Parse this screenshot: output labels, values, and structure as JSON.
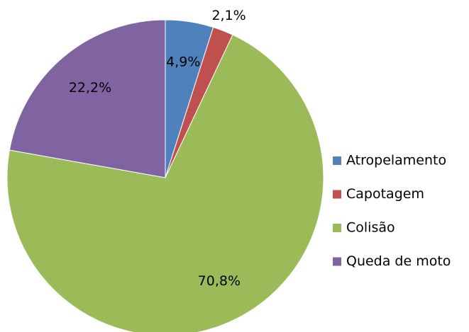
{
  "chart_data": {
    "type": "pie",
    "categories": [
      "Atropelamento",
      "Capotagem",
      "Colisão",
      "Queda de moto"
    ],
    "values": [
      4.9,
      2.1,
      70.8,
      22.2
    ],
    "value_labels": [
      "4,9%",
      "2,1%",
      "70,8%",
      "22,2%"
    ],
    "colors": [
      "#4f81bd",
      "#c0504d",
      "#9bbb59",
      "#8064a2"
    ],
    "legend": "right"
  }
}
